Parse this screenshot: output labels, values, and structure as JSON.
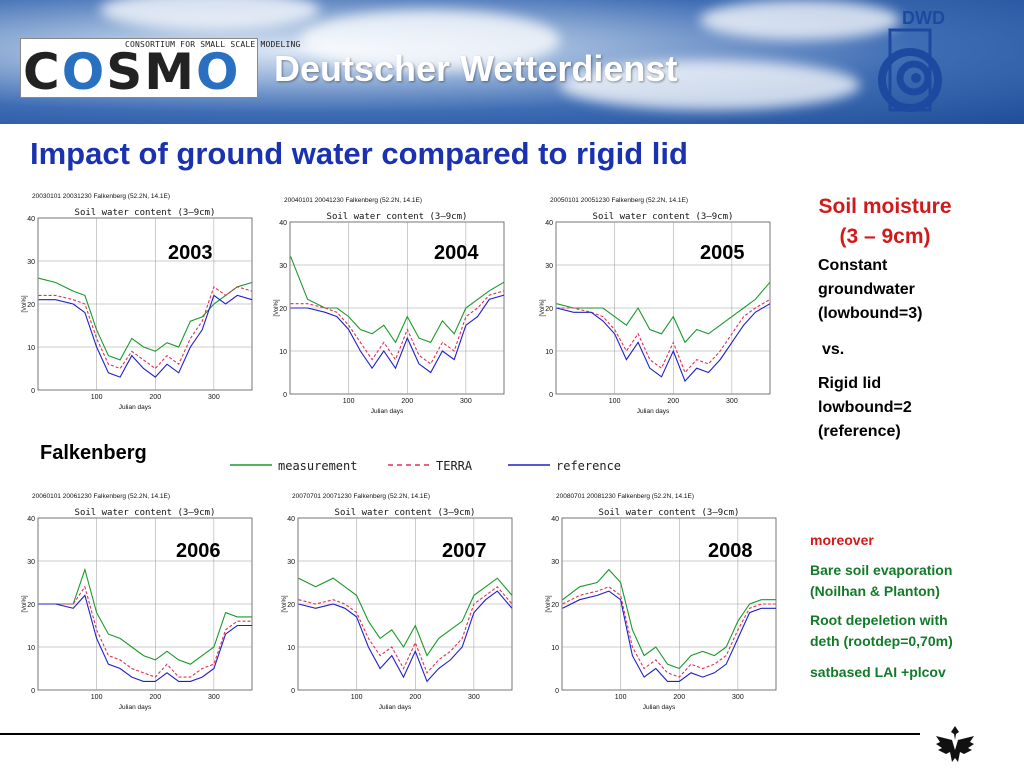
{
  "header": {
    "logo_sub": "CONSORTIUM FOR SMALL SCALE MODELING",
    "logo_c": "C",
    "logo_o1": "O",
    "logo_sm": "SM",
    "logo_o2": "O",
    "org_name": "Deutscher Wetterdienst",
    "dwd_short": "DWD"
  },
  "slide_title": "Impact of ground water compared to rigid lid",
  "station": "Falkenberg",
  "plot_common": {
    "subtitle": "Soil water content (3–9cm)",
    "xlabel": "Julian days",
    "ylabel": "[Vol%]",
    "x_ticks": [
      "100",
      "200",
      "300"
    ],
    "y_ticks": [
      "0",
      "10",
      "20",
      "30",
      "40"
    ]
  },
  "legend": {
    "measurement": "measurement",
    "terra": "TERRA",
    "reference": "reference"
  },
  "colors": {
    "measurement": "#1a9a2a",
    "terra": "#e0305a",
    "reference": "#2020c8",
    "title": "#1a32b0",
    "accent_red": "#d21a1a",
    "accent_green": "#137a2a"
  },
  "side": {
    "heading_line1": "Soil moisture",
    "heading_line2": "(3 – 9cm)",
    "line1": "Constant",
    "line2": "groundwater",
    "line3": "(lowbound=3)",
    "vs": "vs.",
    "line4": "Rigid lid",
    "line5": "lowbound=2",
    "line6": "(reference)",
    "moreover": "moreover",
    "green1a": "Bare soil evaporation",
    "green1b": "(Noilhan & Planton)",
    "green2a": "Root depeletion with",
    "green2b": "deth (rootdep=0,70m)",
    "green3": "satbased LAI +plcov"
  },
  "chart_data": [
    {
      "type": "line",
      "year_label": "2003",
      "header": "20030101 20031230 Falkenberg (52.2N, 14.1E)",
      "xlabel": "Julian days",
      "ylabel": "[Vol%]",
      "xlim": [
        0,
        365
      ],
      "ylim": [
        0,
        40
      ],
      "grid": true,
      "x": [
        1,
        30,
        60,
        80,
        100,
        120,
        140,
        160,
        180,
        200,
        220,
        240,
        260,
        280,
        300,
        320,
        340,
        365
      ],
      "series": [
        {
          "name": "measurement",
          "values": [
            26,
            25,
            23,
            22,
            14,
            8,
            7,
            12,
            10,
            9,
            11,
            10,
            16,
            17,
            20,
            22,
            24,
            25
          ]
        },
        {
          "name": "TERRA",
          "values": [
            22,
            22,
            21,
            20,
            12,
            6,
            5,
            9,
            7,
            5,
            8,
            6,
            12,
            16,
            24,
            22,
            24,
            23
          ]
        },
        {
          "name": "reference",
          "values": [
            21,
            21,
            20,
            18,
            10,
            4,
            3,
            8,
            5,
            3,
            6,
            4,
            10,
            14,
            22,
            20,
            22,
            21
          ]
        }
      ]
    },
    {
      "type": "line",
      "year_label": "2004",
      "header": "20040101 20041230 Falkenberg (52.2N, 14.1E)",
      "xlabel": "Julian days",
      "ylabel": "[Vol%]",
      "xlim": [
        0,
        365
      ],
      "ylim": [
        0,
        40
      ],
      "grid": true,
      "x": [
        1,
        30,
        60,
        80,
        100,
        120,
        140,
        160,
        180,
        200,
        220,
        240,
        260,
        280,
        300,
        320,
        340,
        365
      ],
      "series": [
        {
          "name": "measurement",
          "values": [
            32,
            22,
            20,
            20,
            18,
            15,
            14,
            16,
            12,
            18,
            13,
            12,
            17,
            14,
            20,
            22,
            24,
            26
          ]
        },
        {
          "name": "TERRA",
          "values": [
            21,
            21,
            20,
            19,
            16,
            12,
            8,
            12,
            8,
            15,
            9,
            7,
            12,
            10,
            18,
            20,
            23,
            24
          ]
        },
        {
          "name": "reference",
          "values": [
            20,
            20,
            19,
            18,
            15,
            10,
            6,
            10,
            6,
            13,
            7,
            5,
            10,
            8,
            16,
            18,
            22,
            23
          ]
        }
      ]
    },
    {
      "type": "line",
      "year_label": "2005",
      "header": "20050101 20051230 Falkenberg (52.2N, 14.1E)",
      "xlabel": "Julian days",
      "ylabel": "[Vol%]",
      "xlim": [
        0,
        365
      ],
      "ylim": [
        0,
        40
      ],
      "grid": true,
      "x": [
        1,
        30,
        60,
        80,
        100,
        120,
        140,
        160,
        180,
        200,
        220,
        240,
        260,
        280,
        300,
        320,
        340,
        365
      ],
      "series": [
        {
          "name": "measurement",
          "values": [
            21,
            20,
            20,
            20,
            18,
            16,
            20,
            15,
            14,
            18,
            12,
            15,
            14,
            16,
            18,
            20,
            22,
            26
          ]
        },
        {
          "name": "TERRA",
          "values": [
            20,
            20,
            19,
            18,
            15,
            10,
            14,
            8,
            6,
            12,
            5,
            8,
            7,
            10,
            14,
            18,
            20,
            22
          ]
        },
        {
          "name": "reference",
          "values": [
            20,
            19,
            19,
            17,
            14,
            8,
            12,
            6,
            4,
            10,
            3,
            6,
            5,
            8,
            12,
            16,
            19,
            21
          ]
        }
      ]
    },
    {
      "type": "line",
      "year_label": "2006",
      "header": "20060101 20061230 Falkenberg (52.2N, 14.1E)",
      "xlabel": "Julian days",
      "ylabel": "[Vol%]",
      "xlim": [
        0,
        365
      ],
      "ylim": [
        0,
        40
      ],
      "grid": true,
      "x": [
        1,
        30,
        60,
        80,
        100,
        120,
        140,
        160,
        180,
        200,
        220,
        240,
        260,
        280,
        300,
        320,
        340,
        365
      ],
      "series": [
        {
          "name": "measurement",
          "values": [
            20,
            20,
            20,
            28,
            18,
            13,
            12,
            10,
            8,
            7,
            9,
            7,
            6,
            8,
            10,
            18,
            17,
            17
          ]
        },
        {
          "name": "TERRA",
          "values": [
            20,
            20,
            20,
            24,
            14,
            8,
            7,
            5,
            4,
            3,
            6,
            3,
            3,
            5,
            6,
            14,
            16,
            16
          ]
        },
        {
          "name": "reference",
          "values": [
            20,
            20,
            19,
            22,
            12,
            6,
            5,
            3,
            2,
            2,
            4,
            2,
            2,
            3,
            5,
            13,
            15,
            15
          ]
        }
      ]
    },
    {
      "type": "line",
      "year_label": "2007",
      "header": "20070701 20071230 Falkenberg (52.2N, 14.1E)",
      "xlabel": "Julian days",
      "ylabel": "[Vol%]",
      "xlim": [
        0,
        365
      ],
      "ylim": [
        0,
        40
      ],
      "grid": true,
      "x": [
        1,
        30,
        60,
        80,
        100,
        120,
        140,
        160,
        180,
        200,
        220,
        240,
        260,
        280,
        300,
        320,
        340,
        365
      ],
      "series": [
        {
          "name": "measurement",
          "values": [
            26,
            24,
            26,
            24,
            22,
            16,
            12,
            14,
            10,
            15,
            8,
            12,
            14,
            16,
            22,
            24,
            26,
            22
          ]
        },
        {
          "name": "TERRA",
          "values": [
            21,
            20,
            21,
            20,
            18,
            12,
            8,
            10,
            5,
            11,
            4,
            7,
            9,
            12,
            20,
            22,
            24,
            20
          ]
        },
        {
          "name": "reference",
          "values": [
            20,
            19,
            20,
            19,
            17,
            10,
            5,
            8,
            3,
            9,
            2,
            5,
            7,
            10,
            18,
            21,
            23,
            19
          ]
        }
      ]
    },
    {
      "type": "line",
      "year_label": "2008",
      "header": "20080701 20081230 Falkenberg (52.2N, 14.1E)",
      "xlabel": "Julian days",
      "ylabel": "[Vol%]",
      "xlim": [
        0,
        365
      ],
      "ylim": [
        0,
        40
      ],
      "grid": true,
      "x": [
        1,
        30,
        60,
        80,
        100,
        120,
        140,
        160,
        180,
        200,
        220,
        240,
        260,
        280,
        300,
        320,
        340,
        365
      ],
      "series": [
        {
          "name": "measurement",
          "values": [
            21,
            24,
            25,
            28,
            25,
            14,
            8,
            10,
            6,
            5,
            8,
            9,
            8,
            10,
            16,
            20,
            21,
            21
          ]
        },
        {
          "name": "TERRA",
          "values": [
            20,
            22,
            23,
            24,
            22,
            10,
            5,
            7,
            4,
            3,
            6,
            5,
            6,
            8,
            14,
            19,
            20,
            20
          ]
        },
        {
          "name": "reference",
          "values": [
            19,
            21,
            22,
            23,
            21,
            8,
            3,
            5,
            2,
            2,
            4,
            3,
            4,
            6,
            12,
            18,
            19,
            19
          ]
        }
      ]
    }
  ]
}
